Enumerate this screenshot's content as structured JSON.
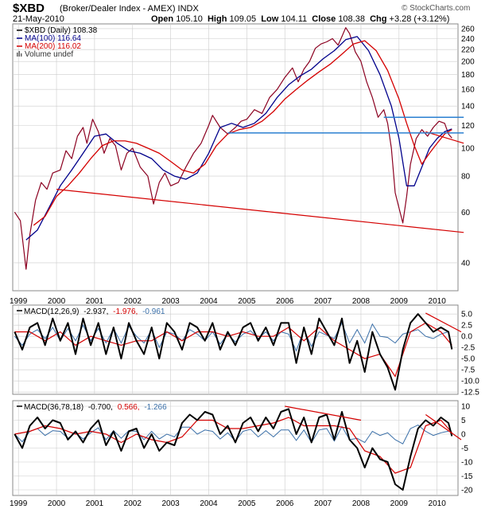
{
  "header": {
    "symbol": "$XBD",
    "description": "(Broker/Dealer Index - AMEX) INDX",
    "date": "21-May-2010",
    "open_label": "Open",
    "open": "105.10",
    "high_label": "High",
    "high": "109.05",
    "low_label": "Low",
    "low": "104.11",
    "close_label": "Close",
    "close": "108.38",
    "chg_label": "Chg",
    "chg": "+3.28 (+3.12%)",
    "credit": "© StockCharts.com"
  },
  "legend": {
    "price": "$XBD (Daily) 108.38",
    "ma100": "MA(100) 116.64",
    "ma200": "MA(200) 116.02",
    "volume": "Volume undef"
  },
  "macd1_legend": {
    "label": "MACD(12,26,9)",
    "macd": "-2.937,",
    "signal": "-1.976,",
    "hist": "-0.961"
  },
  "macd2_legend": {
    "label": "MACD(36,78,18)",
    "macd": "-0.700,",
    "signal": "0.566,",
    "hist": "-1.266"
  },
  "colors": {
    "price": "#8b0020",
    "ma100": "#00008b",
    "ma200": "#d40000",
    "trendline": "#d40000",
    "hline": "#2a7fd0",
    "macd": "#000000",
    "signal": "#d40000",
    "hist": "#3a6fa8",
    "grid": "#cccccc"
  },
  "chart_data": [
    {
      "type": "line",
      "scale": "log",
      "x_ticks": [
        "1999",
        "2000",
        "2001",
        "2002",
        "2003",
        "2004",
        "2005",
        "2006",
        "2007",
        "2008",
        "2009",
        "2010"
      ],
      "y_ticks": [
        260,
        240,
        220,
        200,
        180,
        160,
        140,
        120,
        100,
        80,
        60,
        40
      ],
      "ylim": [
        32,
        270
      ],
      "series": [
        {
          "name": "$XBD (Daily) 108.38",
          "x": [
            1998.9,
            1999.05,
            1999.2,
            1999.3,
            1999.45,
            1999.6,
            1999.75,
            1999.9,
            2000.1,
            2000.25,
            2000.4,
            2000.55,
            2000.7,
            2000.8,
            2000.95,
            2001.1,
            2001.25,
            2001.4,
            2001.55,
            2001.7,
            2001.85,
            2002.0,
            2002.2,
            2002.4,
            2002.55,
            2002.7,
            2002.85,
            2003.0,
            2003.2,
            2003.4,
            2003.6,
            2003.8,
            2004.0,
            2004.1,
            2004.3,
            2004.5,
            2004.7,
            2004.85,
            2005.0,
            2005.2,
            2005.4,
            2005.6,
            2005.8,
            2006.0,
            2006.2,
            2006.35,
            2006.5,
            2006.65,
            2006.8,
            2006.95,
            2007.1,
            2007.25,
            2007.4,
            2007.5,
            2007.6,
            2007.7,
            2007.85,
            2008.0,
            2008.15,
            2008.3,
            2008.45,
            2008.6,
            2008.7,
            2008.8,
            2008.9,
            2009.0,
            2009.1,
            2009.2,
            2009.3,
            2009.45,
            2009.6,
            2009.75,
            2009.9,
            2010.05,
            2010.2,
            2010.3,
            2010.39
          ],
          "values": [
            60,
            56,
            38,
            50,
            66,
            76,
            72,
            82,
            84,
            98,
            92,
            110,
            118,
            104,
            126,
            114,
            96,
            108,
            102,
            84,
            96,
            100,
            86,
            80,
            64,
            76,
            82,
            74,
            76,
            86,
            96,
            104,
            120,
            130,
            118,
            112,
            118,
            124,
            126,
            136,
            132,
            150,
            160,
            176,
            190,
            170,
            188,
            200,
            222,
            230,
            234,
            240,
            228,
            244,
            262,
            250,
            216,
            200,
            170,
            150,
            128,
            136,
            122,
            100,
            70,
            62,
            55,
            68,
            88,
            108,
            116,
            110,
            118,
            124,
            122,
            112,
            108.38
          ]
        },
        {
          "name": "MA(100) 116.64",
          "x": [
            1999.2,
            1999.5,
            1999.8,
            2000.1,
            2000.4,
            2000.7,
            2001.0,
            2001.3,
            2001.6,
            2001.9,
            2002.2,
            2002.5,
            2002.8,
            2003.1,
            2003.4,
            2003.7,
            2004.0,
            2004.3,
            2004.6,
            2004.9,
            2005.2,
            2005.5,
            2005.8,
            2006.1,
            2006.4,
            2006.7,
            2007.0,
            2007.3,
            2007.6,
            2007.9,
            2008.2,
            2008.5,
            2008.8,
            2009.0,
            2009.2,
            2009.4,
            2009.6,
            2009.8,
            2010.0,
            2010.2,
            2010.39
          ],
          "values": [
            48,
            52,
            62,
            74,
            84,
            96,
            110,
            112,
            104,
            98,
            96,
            92,
            84,
            80,
            78,
            82,
            96,
            118,
            122,
            118,
            122,
            132,
            150,
            166,
            178,
            188,
            204,
            218,
            238,
            244,
            218,
            180,
            140,
            108,
            74,
            74,
            86,
            100,
            108,
            114,
            116.64
          ]
        },
        {
          "name": "MA(200) 116.02",
          "x": [
            1999.4,
            1999.7,
            2000.0,
            2000.3,
            2000.6,
            2000.9,
            2001.2,
            2001.5,
            2001.8,
            2002.1,
            2002.4,
            2002.7,
            2003.0,
            2003.3,
            2003.6,
            2003.9,
            2004.2,
            2004.5,
            2004.8,
            2005.1,
            2005.4,
            2005.7,
            2006.0,
            2006.3,
            2006.6,
            2006.9,
            2007.2,
            2007.5,
            2007.8,
            2008.1,
            2008.4,
            2008.7,
            2009.0,
            2009.2,
            2009.4,
            2009.6,
            2009.8,
            2010.0,
            2010.2,
            2010.39
          ],
          "values": [
            54,
            58,
            68,
            74,
            82,
            92,
            102,
            106,
            106,
            104,
            100,
            96,
            90,
            84,
            82,
            88,
            102,
            112,
            116,
            118,
            124,
            134,
            148,
            160,
            172,
            184,
            196,
            212,
            230,
            236,
            218,
            186,
            148,
            122,
            102,
            88,
            96,
            104,
            112,
            116.02
          ]
        }
      ],
      "annotations": [
        {
          "type": "trendline",
          "x": [
            2000.0,
            2010.7
          ],
          "values": [
            72,
            51
          ]
        },
        {
          "type": "trendline",
          "x": [
            2009.7,
            2010.7
          ],
          "values": [
            114,
            104
          ]
        },
        {
          "type": "hline",
          "x": [
            2004.5,
            2010.7
          ],
          "values": [
            113,
            113
          ]
        },
        {
          "type": "hline",
          "x": [
            2008.6,
            2010.7
          ],
          "values": [
            128,
            128
          ]
        }
      ]
    },
    {
      "type": "line",
      "title": "MACD(12,26,9)",
      "y_ticks": [
        5.0,
        2.5,
        0.0,
        -2.5,
        -5.0,
        -7.5,
        -10.0,
        -12.5
      ],
      "ylim": [
        -13,
        7
      ],
      "series": [
        {
          "name": "MACD",
          "x": [
            1998.9,
            1999.1,
            1999.3,
            1999.5,
            1999.7,
            1999.9,
            2000.1,
            2000.3,
            2000.5,
            2000.7,
            2000.9,
            2001.1,
            2001.3,
            2001.5,
            2001.7,
            2001.9,
            2002.1,
            2002.3,
            2002.5,
            2002.7,
            2002.9,
            2003.1,
            2003.3,
            2003.5,
            2003.7,
            2003.9,
            2004.1,
            2004.3,
            2004.5,
            2004.7,
            2004.9,
            2005.1,
            2005.3,
            2005.5,
            2005.7,
            2005.9,
            2006.1,
            2006.3,
            2006.5,
            2006.7,
            2006.9,
            2007.1,
            2007.3,
            2007.5,
            2007.7,
            2007.9,
            2008.1,
            2008.3,
            2008.5,
            2008.7,
            2008.9,
            2009.1,
            2009.3,
            2009.5,
            2009.7,
            2009.9,
            2010.1,
            2010.3,
            2010.39
          ],
          "values": [
            1,
            -3,
            2,
            3,
            -2,
            4,
            -1,
            3,
            -4,
            4,
            -2,
            3,
            -4,
            2,
            -5,
            3,
            -1,
            -4,
            2,
            -5,
            3,
            1,
            -3,
            3,
            2,
            -1,
            3,
            -3,
            1,
            -2,
            2,
            3,
            -1,
            2,
            -2,
            3,
            3,
            -6,
            2,
            -4,
            4,
            1,
            -2,
            4,
            -6,
            -1,
            -8,
            1,
            -4,
            -7,
            -12,
            -3,
            3,
            5,
            3,
            1,
            2,
            1,
            -2.937
          ]
        },
        {
          "name": "Signal",
          "x": [
            1998.9,
            1999.3,
            1999.7,
            2000.1,
            2000.5,
            2000.9,
            2001.3,
            2001.7,
            2002.1,
            2002.5,
            2002.9,
            2003.3,
            2003.7,
            2004.1,
            2004.5,
            2004.9,
            2005.3,
            2005.7,
            2006.1,
            2006.5,
            2006.9,
            2007.3,
            2007.7,
            2008.1,
            2008.5,
            2008.9,
            2009.3,
            2009.7,
            2010.1,
            2010.39
          ],
          "values": [
            1,
            1,
            -1,
            1,
            -2,
            0,
            -1,
            -2,
            -1,
            -1,
            1,
            -1,
            1,
            1,
            0,
            1,
            0,
            0,
            2,
            -1,
            2,
            -1,
            -3,
            -5,
            -4,
            -9,
            1,
            3,
            1,
            -1.976
          ]
        }
      ],
      "annotations": [
        {
          "type": "trendline",
          "x": [
            2009.7,
            2010.7
          ],
          "values": [
            5.2,
            1.0
          ]
        }
      ]
    },
    {
      "type": "line",
      "title": "MACD(36,78,18)",
      "y_ticks": [
        10,
        5,
        0,
        -5,
        -10,
        -15,
        -20
      ],
      "ylim": [
        -22,
        12
      ],
      "series": [
        {
          "name": "MACD",
          "x": [
            1998.9,
            1999.1,
            1999.3,
            1999.5,
            1999.7,
            1999.9,
            2000.1,
            2000.3,
            2000.5,
            2000.7,
            2000.9,
            2001.1,
            2001.3,
            2001.5,
            2001.7,
            2001.9,
            2002.1,
            2002.3,
            2002.5,
            2002.7,
            2002.9,
            2003.1,
            2003.3,
            2003.5,
            2003.7,
            2003.9,
            2004.1,
            2004.3,
            2004.5,
            2004.7,
            2004.9,
            2005.1,
            2005.3,
            2005.5,
            2005.7,
            2005.9,
            2006.1,
            2006.3,
            2006.5,
            2006.7,
            2006.9,
            2007.1,
            2007.3,
            2007.5,
            2007.7,
            2007.9,
            2008.1,
            2008.3,
            2008.5,
            2008.7,
            2008.9,
            2009.1,
            2009.3,
            2009.5,
            2009.7,
            2009.9,
            2010.1,
            2010.3,
            2010.39
          ],
          "values": [
            0,
            -5,
            3,
            6,
            2,
            5,
            4,
            -2,
            1,
            -3,
            2,
            5,
            -4,
            1,
            -6,
            1,
            2,
            -5,
            0,
            -6,
            -3,
            -4,
            4,
            7,
            5,
            8,
            7,
            0,
            3,
            -3,
            4,
            6,
            1,
            6,
            2,
            8,
            9,
            0,
            6,
            -3,
            6,
            7,
            -2,
            8,
            -2,
            -5,
            -12,
            -5,
            -9,
            -10,
            -18,
            -20,
            -8,
            2,
            5,
            3,
            6,
            4,
            -0.7
          ]
        },
        {
          "name": "Signal",
          "x": [
            1998.9,
            1999.3,
            1999.7,
            2000.1,
            2000.5,
            2000.9,
            2001.3,
            2001.7,
            2002.1,
            2002.5,
            2002.9,
            2003.3,
            2003.7,
            2004.1,
            2004.5,
            2004.9,
            2005.3,
            2005.7,
            2006.1,
            2006.5,
            2006.9,
            2007.3,
            2007.7,
            2008.1,
            2008.5,
            2008.9,
            2009.3,
            2009.7,
            2010.1,
            2010.39
          ],
          "values": [
            0,
            1,
            3,
            2,
            0,
            1,
            0,
            -3,
            0,
            -2,
            -3,
            -1,
            5,
            5,
            2,
            2,
            3,
            4,
            6,
            3,
            3,
            3,
            2,
            -6,
            -8,
            -14,
            -12,
            3,
            5,
            0.566
          ]
        }
      ],
      "annotations": [
        {
          "type": "trendline",
          "x": [
            2006.0,
            2008.0
          ],
          "values": [
            10,
            5
          ]
        },
        {
          "type": "trendline",
          "x": [
            2009.7,
            2010.7
          ],
          "values": [
            7,
            -2
          ]
        }
      ]
    }
  ]
}
